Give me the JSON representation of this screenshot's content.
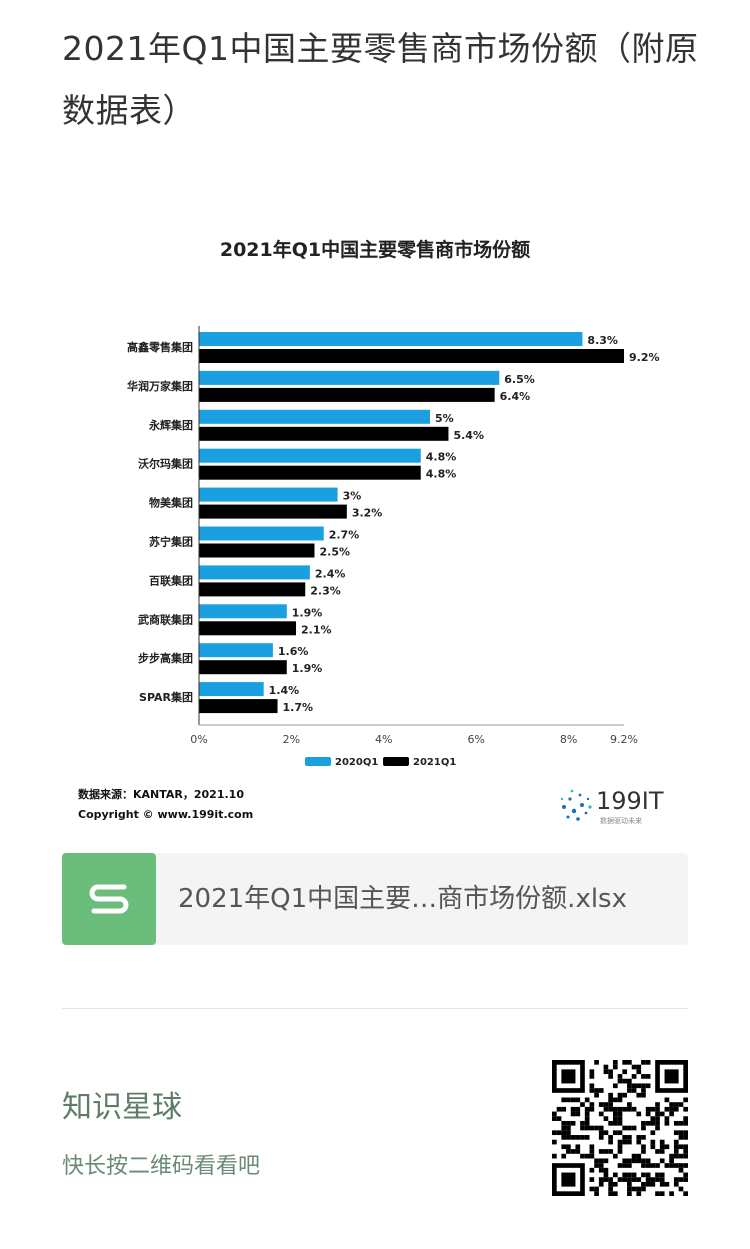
{
  "page": {
    "title": "2021年Q1中国主要零售商市场份额（附原数据表）"
  },
  "chart_data": {
    "type": "bar",
    "orientation": "horizontal",
    "title": "2021年Q1中国主要零售商市场份额",
    "categories": [
      "高鑫零售集团",
      "华润万家集团",
      "永辉集团",
      "沃尔玛集团",
      "物美集团",
      "苏宁集团",
      "百联集团",
      "武商联集团",
      "步步高集团",
      "SPAR集团"
    ],
    "series": [
      {
        "name": "2020Q1",
        "color": "#1a9fe0",
        "values": [
          8.3,
          6.5,
          5,
          4.8,
          3,
          2.7,
          2.4,
          1.9,
          1.6,
          1.4
        ],
        "labels": [
          "8.3%",
          "6.5%",
          "5%",
          "4.8%",
          "3%",
          "2.7%",
          "2.4%",
          "1.9%",
          "1.6%",
          "1.4%"
        ]
      },
      {
        "name": "2021Q1",
        "color": "#000000",
        "values": [
          9.2,
          6.4,
          5.4,
          4.8,
          3.2,
          2.5,
          2.3,
          2.1,
          1.9,
          1.7
        ],
        "labels": [
          "9.2%",
          "6.4%",
          "5.4%",
          "4.8%",
          "3.2%",
          "2.5%",
          "2.3%",
          "2.1%",
          "1.9%",
          "1.7%"
        ]
      }
    ],
    "xlim": [
      0,
      9.2
    ],
    "xticks": [
      0,
      2,
      4,
      6,
      8,
      9.2
    ],
    "xtick_labels": [
      "0%",
      "2%",
      "4%",
      "6%",
      "8%",
      "9.2%"
    ],
    "legend_position": "bottom",
    "grid": false
  },
  "source": {
    "line1": "数据来源：KANTAR，2021.10",
    "line2": "Copyright © www.199it.com"
  },
  "logo": {
    "text": "199IT",
    "subtext": "数据驱动未来"
  },
  "file": {
    "name": "2021年Q1中国主要…商市场份额.xlsx",
    "icon": "spreadsheet-s-icon"
  },
  "footer": {
    "title": "知识星球",
    "subtitle": "快长按二维码看看吧"
  }
}
